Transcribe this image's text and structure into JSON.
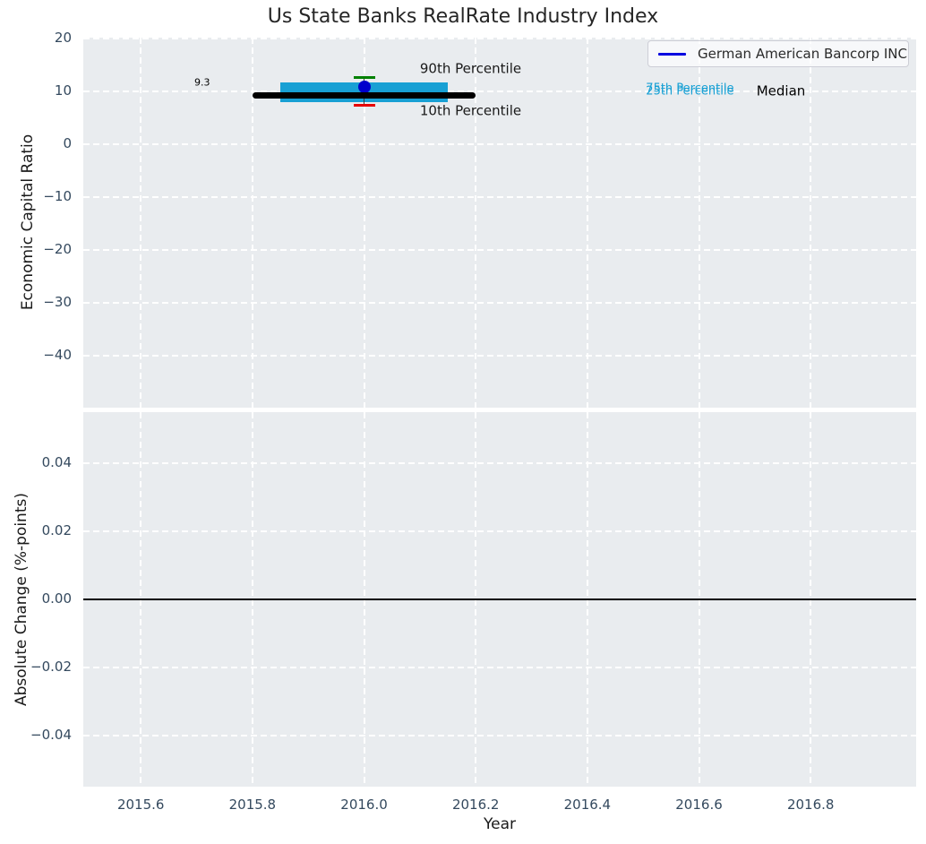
{
  "figure": {
    "bg_color": "#ffffff",
    "axes_bg_color": "#e9ecef",
    "grid_color": "#ffffff",
    "tick_color": "#34495e",
    "text_color": "#262626"
  },
  "chart_data": [
    {
      "type": "scatter",
      "title": "Us State Banks RealRate Industry Index",
      "ylabel": "Economic Capital Ratio",
      "xlim": [
        2015.497,
        2016.989
      ],
      "ylim": [
        -49.8,
        20.2
      ],
      "ytick_values": [
        20,
        10,
        0,
        -10,
        -20,
        -30,
        -40
      ],
      "ytick_labels": [
        "20",
        "10",
        "0",
        "−10",
        "−20",
        "−30",
        "−40"
      ],
      "xtick_values": [
        2015.6,
        2015.8,
        2016.0,
        2016.2,
        2016.4,
        2016.6,
        2016.8
      ],
      "grid": true,
      "legend": {
        "label": "German American Bancorp INC",
        "line_color": "#0000e0",
        "position": "upper right"
      },
      "median_line": {
        "y": 9.3,
        "x_start": 2015.8,
        "x_end": 2016.2,
        "color": "#000000"
      },
      "iqr_band": {
        "y_low": 8.0,
        "y_high": 11.7,
        "x_start": 2015.85,
        "x_end": 2016.15,
        "color": "#18a0d4"
      },
      "whiskers": {
        "x": 2016.0,
        "p90": 12.7,
        "p10": 7.4,
        "p90_color": "#008000",
        "p10_color": "#e80000",
        "line_color": "#3a3a3a"
      },
      "company_point": {
        "name": "German American Bancorp INC",
        "x": 2016.0,
        "y": 10.9,
        "color": "#0000cc"
      },
      "annotations": [
        {
          "text": "9.3",
          "x": 2015.71,
          "y": 11.7,
          "color": "#000000",
          "size": 11,
          "align": "center"
        },
        {
          "text": "90th Percentile",
          "x": 2016.1,
          "y": 14.3,
          "color": "#1a1a1a",
          "size": 15,
          "align": "left"
        },
        {
          "text": "10th Percentile",
          "x": 2016.1,
          "y": 6.3,
          "color": "#1a1a1a",
          "size": 15,
          "align": "left"
        },
        {
          "text": "75th Percentile",
          "x": 2016.505,
          "y": 10.5,
          "color": "#18a0d4",
          "size": 13,
          "align": "left"
        },
        {
          "text": "25th Percentile",
          "x": 2016.505,
          "y": 10.1,
          "color": "#18a0d4",
          "size": 13,
          "align": "left"
        },
        {
          "text": "Median",
          "x": 2016.703,
          "y": 10.0,
          "color": "#000000",
          "size": 15,
          "align": "left"
        }
      ]
    },
    {
      "type": "line",
      "ylabel": "Absolute Change (%-points)",
      "xlabel": "Year",
      "xlim": [
        2015.497,
        2016.989
      ],
      "ylim": [
        -0.055,
        0.055
      ],
      "ytick_values": [
        0.04,
        0.02,
        0,
        -0.02,
        -0.04
      ],
      "ytick_labels": [
        "0.04",
        "0.02",
        "0.00",
        "−0.02",
        "−0.04"
      ],
      "xtick_values": [
        2015.6,
        2015.8,
        2016.0,
        2016.2,
        2016.4,
        2016.6,
        2016.8
      ],
      "xtick_labels": [
        "2015.6",
        "2015.8",
        "2016.0",
        "2016.2",
        "2016.4",
        "2016.6",
        "2016.8"
      ],
      "grid": true,
      "zero_line": {
        "y": 0.0,
        "color": "#000000"
      }
    }
  ]
}
